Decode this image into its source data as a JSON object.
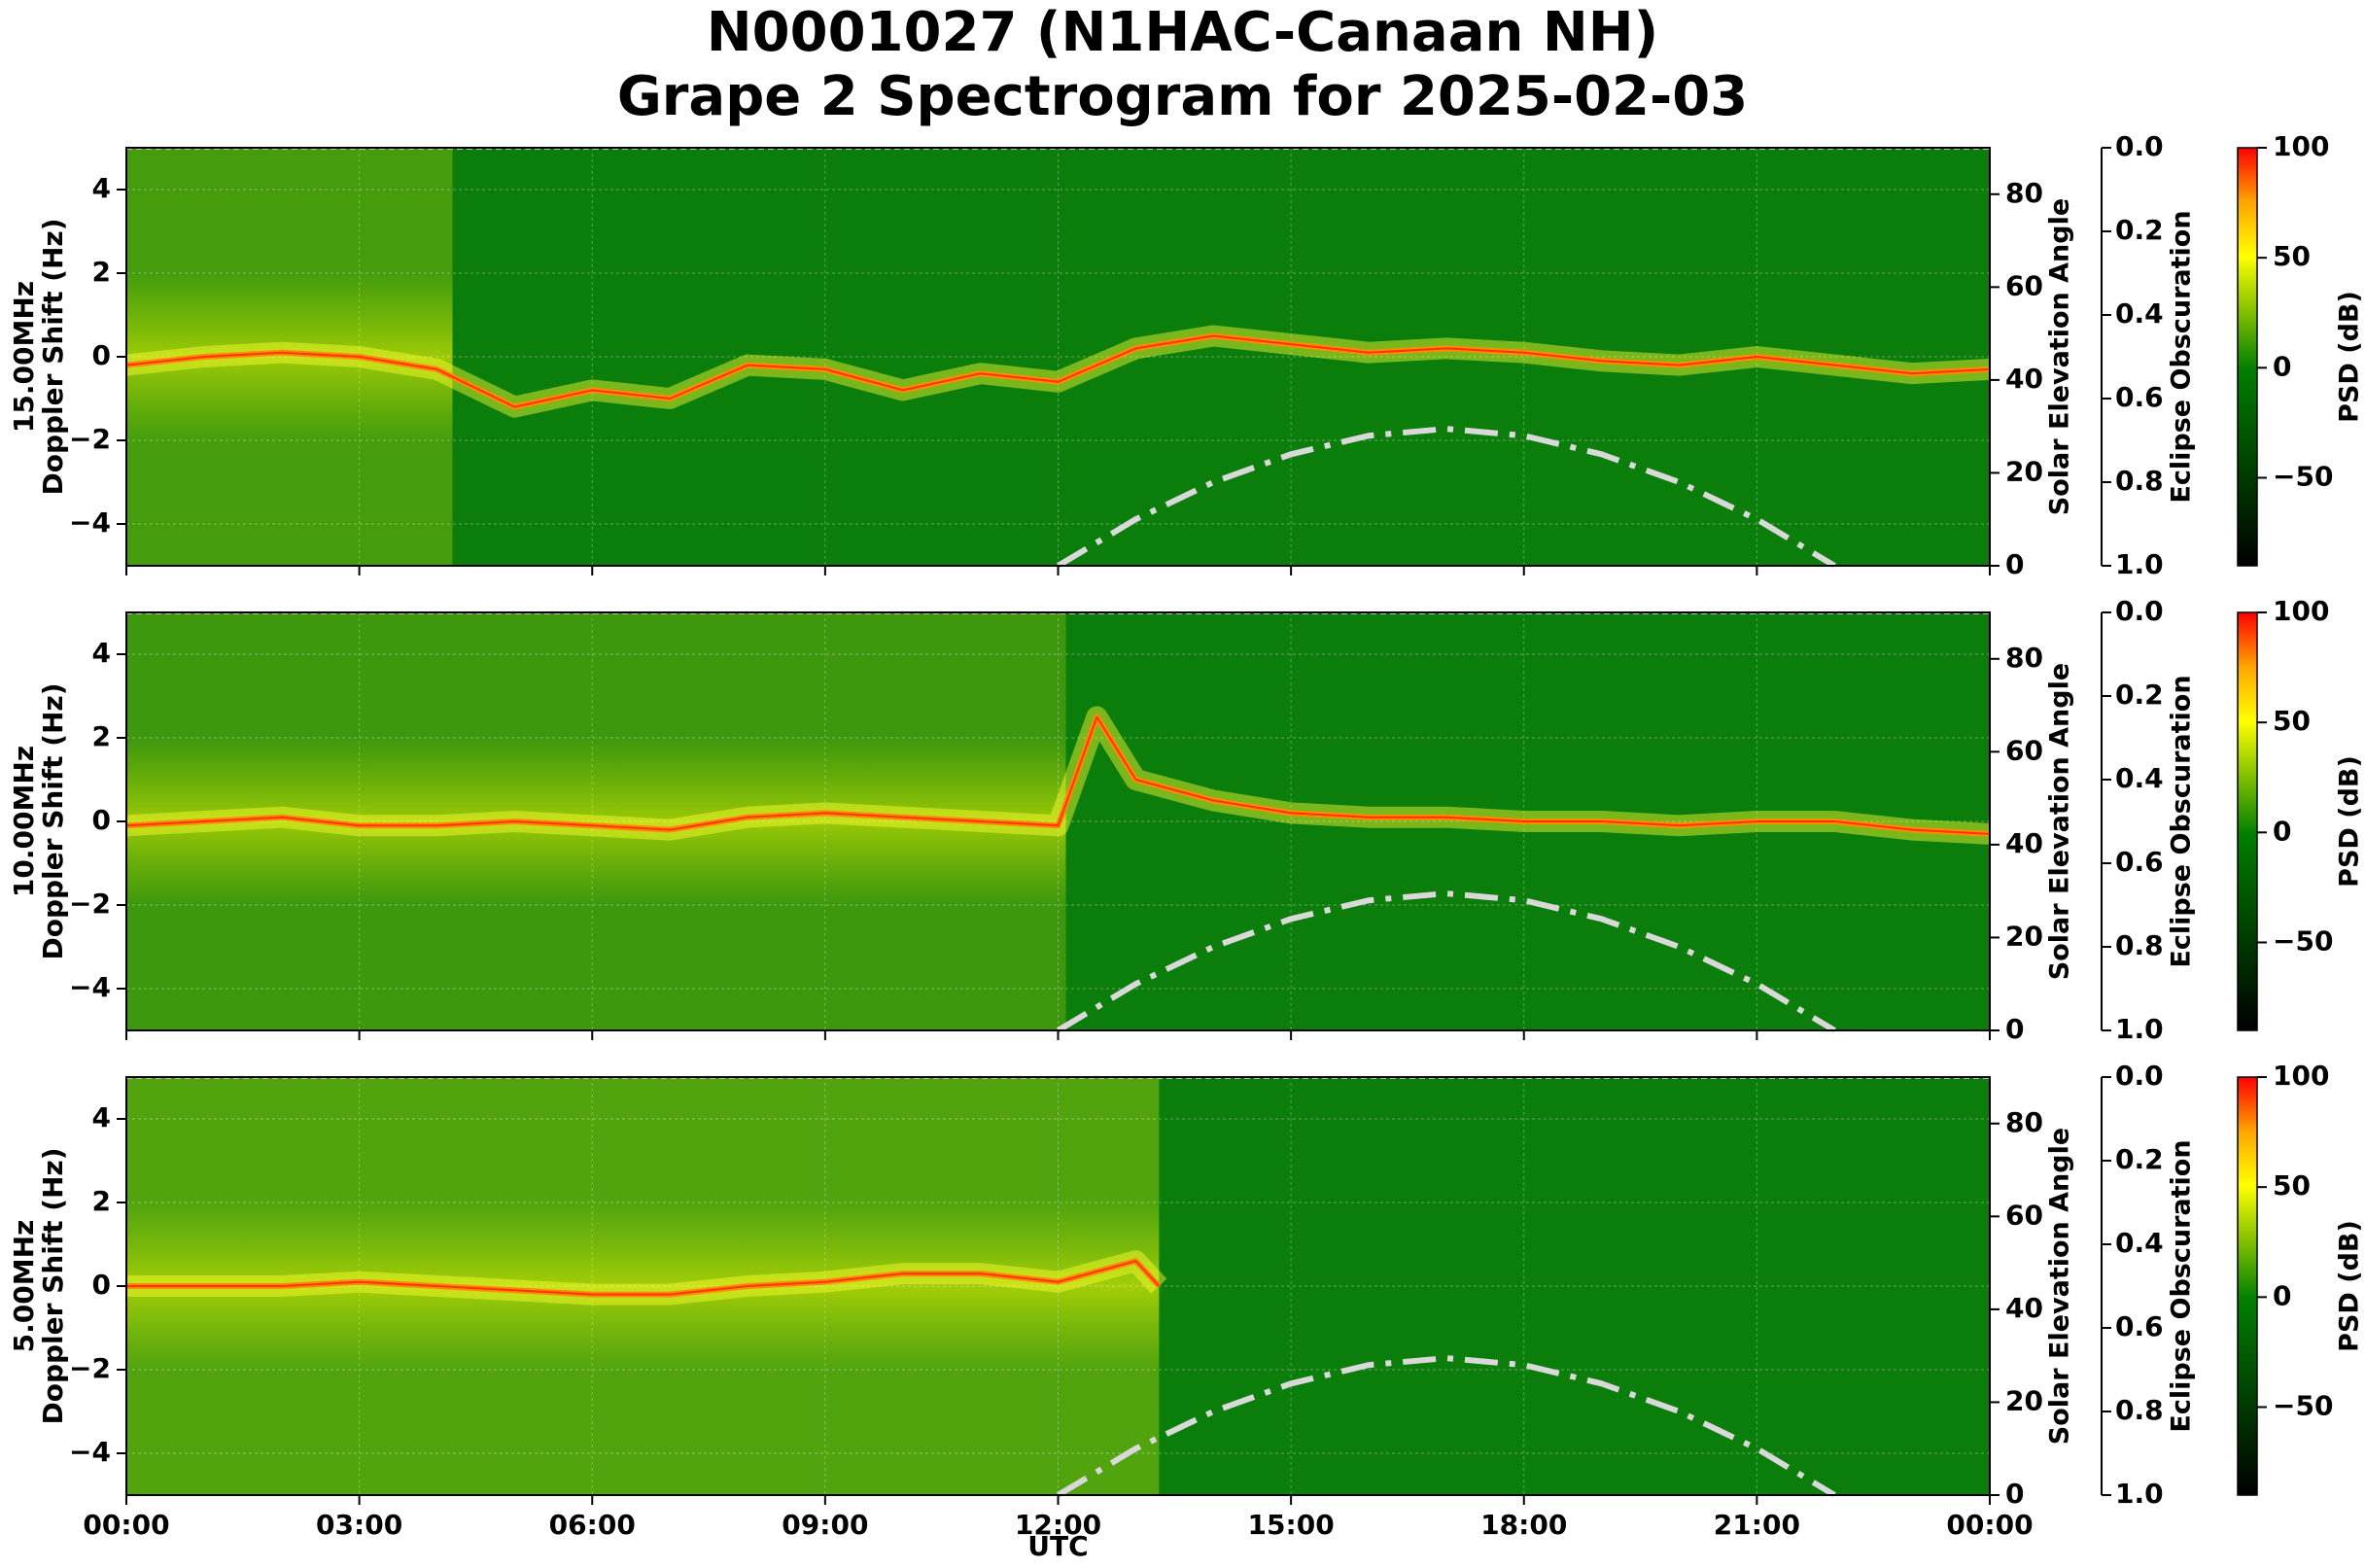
{
  "title": [
    "N0001027 (N1HAC-Canaan NH)",
    "Grape 2 Spectrogram for 2025-02-03"
  ],
  "chart_data": {
    "type": "heatmap",
    "xlabel": "UTC",
    "x_ticks": [
      "00:00",
      "03:00",
      "06:00",
      "09:00",
      "12:00",
      "15:00",
      "18:00",
      "21:00",
      "00:00"
    ],
    "xlim_hours": [
      0,
      24
    ],
    "y_ticks": [
      "−4",
      "−2",
      "0",
      "2",
      "4"
    ],
    "ylim": [
      -5,
      5
    ],
    "y2_label": "Solar Elevation Angle",
    "y2_ticks": [
      "0",
      "20",
      "40",
      "60",
      "80"
    ],
    "y2_lim": [
      0,
      90
    ],
    "y3_label": "Eclipse Obscuration",
    "y3_ticks": [
      "0.0",
      "0.2",
      "0.4",
      "0.6",
      "0.8",
      "1.0"
    ],
    "colorbar": {
      "label": "PSD (dB)",
      "ticks": [
        "100",
        "50",
        "0",
        "−50"
      ],
      "range": [
        -90,
        100
      ],
      "colors": [
        "#ff0000",
        "#ffa500",
        "#ffff00",
        "#007f00",
        "#000000"
      ]
    },
    "solar_elevation": {
      "style": "dash-dot",
      "color": "#d9d9d9",
      "points": [
        [
          12.0,
          0
        ],
        [
          13.0,
          10
        ],
        [
          14.0,
          18
        ],
        [
          15.0,
          24
        ],
        [
          16.0,
          28
        ],
        [
          17.0,
          29.5
        ],
        [
          18.0,
          28
        ],
        [
          19.0,
          24
        ],
        [
          20.0,
          18
        ],
        [
          21.0,
          10
        ],
        [
          22.0,
          0
        ]
      ]
    },
    "panels": [
      {
        "ylabel": [
          "15.00MHz",
          "Doppler Shift (Hz)"
        ],
        "trace": [
          [
            0,
            -0.2
          ],
          [
            1,
            0.0
          ],
          [
            2,
            0.1
          ],
          [
            3,
            0.0
          ],
          [
            4,
            -0.3
          ],
          [
            5,
            -1.2
          ],
          [
            6,
            -0.8
          ],
          [
            7,
            -1.0
          ],
          [
            8,
            -0.2
          ],
          [
            9,
            -0.3
          ],
          [
            10,
            -0.8
          ],
          [
            11,
            -0.4
          ],
          [
            12,
            -0.6
          ],
          [
            13,
            0.2
          ],
          [
            14,
            0.5
          ],
          [
            15,
            0.3
          ],
          [
            16,
            0.1
          ],
          [
            17,
            0.2
          ],
          [
            18,
            0.1
          ],
          [
            19,
            -0.1
          ],
          [
            20,
            -0.2
          ],
          [
            21,
            0.0
          ],
          [
            22,
            -0.2
          ],
          [
            23,
            -0.4
          ],
          [
            24,
            -0.3
          ]
        ]
      },
      {
        "ylabel": [
          "10.00MHz",
          "Doppler Shift (Hz)"
        ],
        "trace": [
          [
            0,
            -0.1
          ],
          [
            1,
            0.0
          ],
          [
            2,
            0.1
          ],
          [
            3,
            -0.1
          ],
          [
            4,
            -0.1
          ],
          [
            5,
            0.0
          ],
          [
            6,
            -0.1
          ],
          [
            7,
            -0.2
          ],
          [
            8,
            0.1
          ],
          [
            9,
            0.2
          ],
          [
            10,
            0.1
          ],
          [
            11,
            0.0
          ],
          [
            12,
            -0.1
          ],
          [
            12.5,
            2.5
          ],
          [
            13,
            1.0
          ],
          [
            14,
            0.5
          ],
          [
            15,
            0.2
          ],
          [
            16,
            0.1
          ],
          [
            17,
            0.1
          ],
          [
            18,
            0.0
          ],
          [
            19,
            0.0
          ],
          [
            20,
            -0.1
          ],
          [
            21,
            0.0
          ],
          [
            22,
            0.0
          ],
          [
            23,
            -0.2
          ],
          [
            24,
            -0.3
          ]
        ]
      },
      {
        "ylabel": [
          "5.00MHz",
          "Doppler Shift (Hz)"
        ],
        "trace": [
          [
            0,
            0.0
          ],
          [
            1,
            0.0
          ],
          [
            2,
            0.0
          ],
          [
            3,
            0.1
          ],
          [
            4,
            0.0
          ],
          [
            5,
            -0.1
          ],
          [
            6,
            -0.2
          ],
          [
            7,
            -0.2
          ],
          [
            8,
            0.0
          ],
          [
            9,
            0.1
          ],
          [
            10,
            0.3
          ],
          [
            11,
            0.3
          ],
          [
            12,
            0.1
          ],
          [
            13,
            0.6
          ],
          [
            13.3,
            0.0
          ]
        ]
      }
    ]
  }
}
